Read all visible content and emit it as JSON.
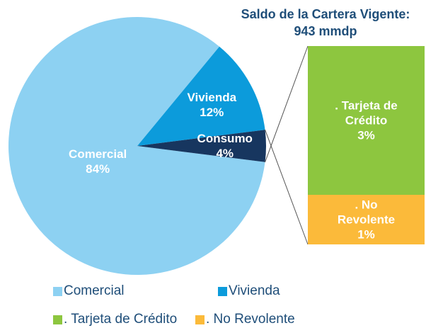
{
  "chart_data": {
    "type": "pie-of-bar",
    "title": "Saldo de la Cartera Vigente: 943 mmdp",
    "pie": {
      "categories": [
        "Comercial",
        "Vivienda",
        "Consumo"
      ],
      "values": [
        84,
        12,
        4
      ],
      "value_labels": [
        "84%",
        "12%",
        "4%"
      ],
      "colors": [
        "#8DD1F2",
        "#0C9BDB",
        "#17365F"
      ]
    },
    "bar": {
      "categories": [
        ". Tarjeta de Crédito",
        ". No Revolente"
      ],
      "values": [
        3,
        1
      ],
      "value_labels": [
        "3%",
        "1%"
      ],
      "colors": [
        "#8DC63F",
        "#FBBA3A"
      ]
    }
  }
}
